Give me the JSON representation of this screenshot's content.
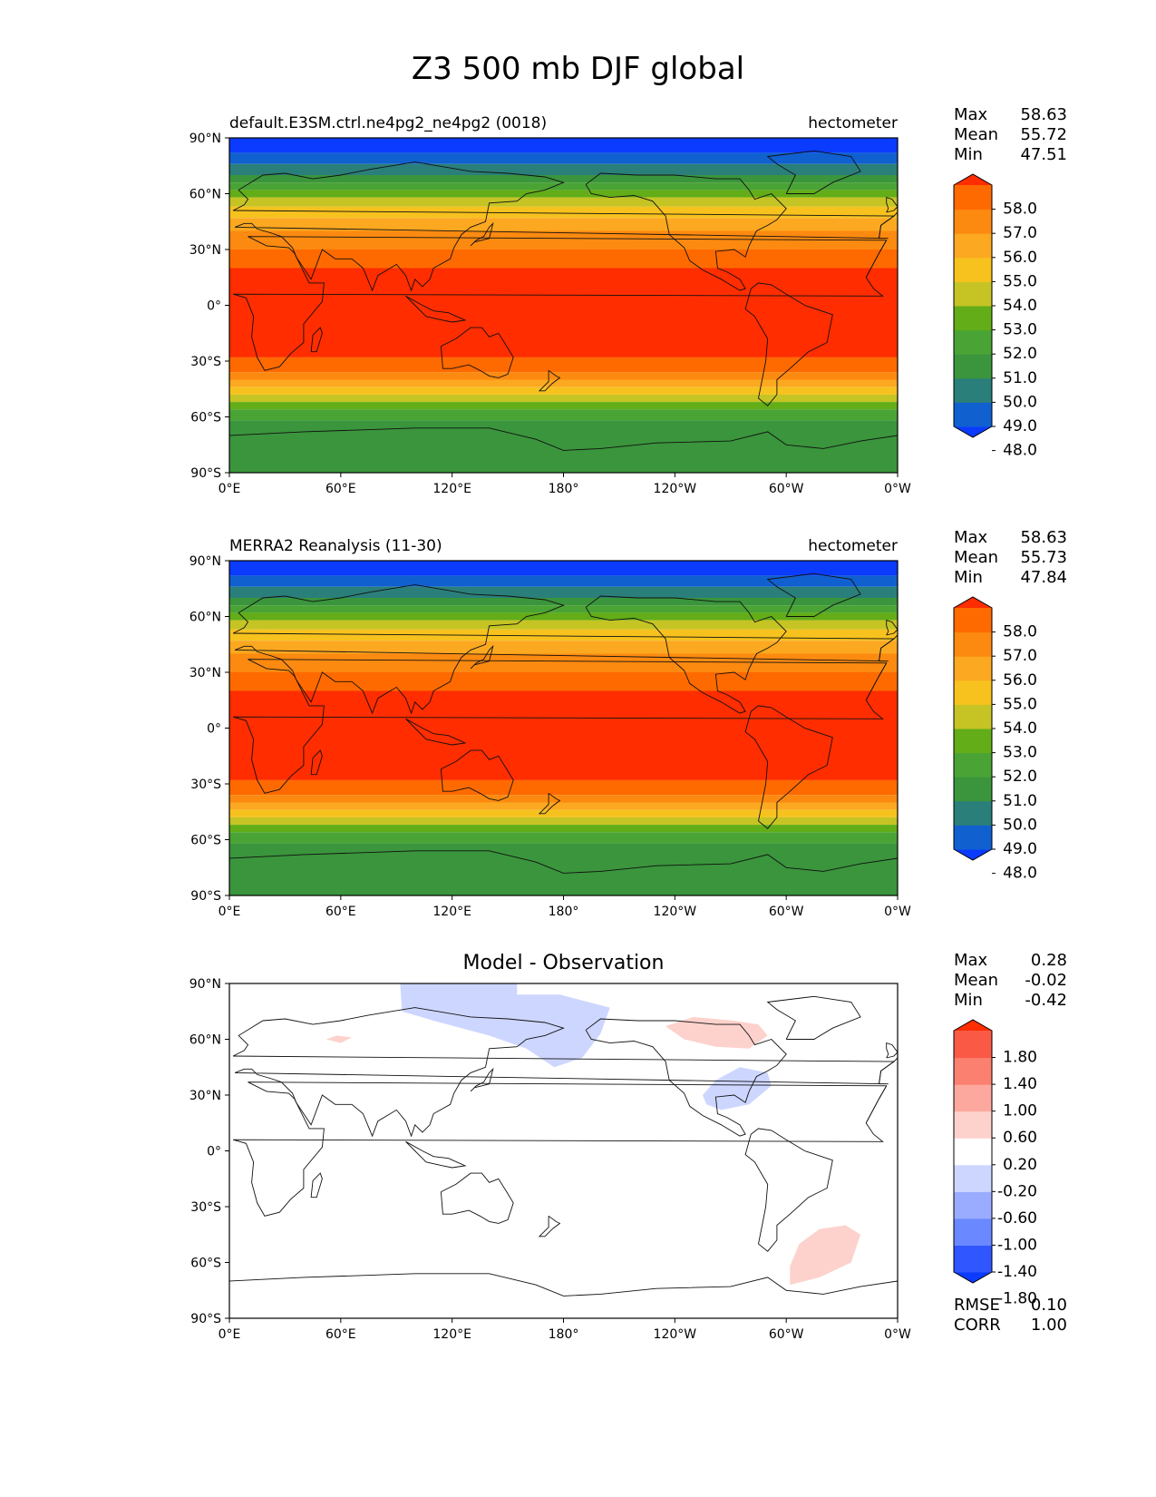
{
  "title": "Z3 500 mb DJF global",
  "lat_ticks": [
    "90°N",
    "60°N",
    "30°N",
    "0°",
    "30°S",
    "60°S",
    "90°S"
  ],
  "lon_ticks": [
    "0°E",
    "60°E",
    "120°E",
    "180°",
    "120°W",
    "60°W",
    "0°W"
  ],
  "panels": [
    {
      "left_title": "default.E3SM.ctrl.ne4pg2_ne4pg2 (0018)",
      "right_title": "hectometer",
      "center_title": "",
      "stats": [
        {
          "label": "Max",
          "value": "58.63"
        },
        {
          "label": "Mean",
          "value": "55.72"
        },
        {
          "label": "Min",
          "value": "47.51"
        }
      ],
      "colorbar": {
        "colors": [
          "#0b3bff",
          "#1060d0",
          "#2a7f7a",
          "#3a953c",
          "#4aa335",
          "#62ad18",
          "#c5c424",
          "#f7c21e",
          "#fca820",
          "#fc8a10",
          "#ff6a00",
          "#ff2d00"
        ],
        "labels": [
          "58.0",
          "57.0",
          "56.0",
          "55.0",
          "54.0",
          "53.0",
          "52.0",
          "51.0",
          "50.0",
          "49.0",
          "48.0"
        ]
      },
      "footer_stats": []
    },
    {
      "left_title": "MERRA2 Reanalysis (11-30)",
      "right_title": "hectometer",
      "center_title": "",
      "stats": [
        {
          "label": "Max",
          "value": "58.63"
        },
        {
          "label": "Mean",
          "value": "55.73"
        },
        {
          "label": "Min",
          "value": "47.84"
        }
      ],
      "colorbar": {
        "colors": [
          "#0b3bff",
          "#1060d0",
          "#2a7f7a",
          "#3a953c",
          "#4aa335",
          "#62ad18",
          "#c5c424",
          "#f7c21e",
          "#fca820",
          "#fc8a10",
          "#ff6a00",
          "#ff2d00"
        ],
        "labels": [
          "58.0",
          "57.0",
          "56.0",
          "55.0",
          "54.0",
          "53.0",
          "52.0",
          "51.0",
          "50.0",
          "49.0",
          "48.0"
        ]
      },
      "footer_stats": []
    },
    {
      "left_title": "",
      "right_title": "",
      "center_title": "Model - Observation",
      "stats": [
        {
          "label": "Max",
          "value": "0.28"
        },
        {
          "label": "Mean",
          "value": "-0.02"
        },
        {
          "label": "Min",
          "value": "-0.42"
        }
      ],
      "colorbar": {
        "colors": [
          "#0b3bff",
          "#3056ff",
          "#6a88ff",
          "#9aacff",
          "#cdd6ff",
          "#ffffff",
          "#fdd2cc",
          "#fca89e",
          "#fc8070",
          "#fa5a45",
          "#ff2d00"
        ],
        "labels": [
          "1.80",
          "1.40",
          "1.00",
          "0.60",
          "0.20",
          "-0.20",
          "-0.60",
          "-1.00",
          "-1.40",
          "-1.80"
        ]
      },
      "footer_stats": [
        {
          "label": "RMSE",
          "value": "0.10"
        },
        {
          "label": "CORR",
          "value": "1.00"
        }
      ]
    }
  ],
  "field_bands": [
    {
      "lat": 90,
      "color": "#0b3bff"
    },
    {
      "lat": 82,
      "color": "#1060d0"
    },
    {
      "lat": 76,
      "color": "#2a7f7a"
    },
    {
      "lat": 70,
      "color": "#3a953c"
    },
    {
      "lat": 66,
      "color": "#4aa335"
    },
    {
      "lat": 62,
      "color": "#62ad18"
    },
    {
      "lat": 58,
      "color": "#c5c424"
    },
    {
      "lat": 53,
      "color": "#f7c21e"
    },
    {
      "lat": 47,
      "color": "#fca820"
    },
    {
      "lat": 40,
      "color": "#fc8a10"
    },
    {
      "lat": 30,
      "color": "#ff6a00"
    },
    {
      "lat": 20,
      "color": "#ff2d00"
    },
    {
      "lat": -28,
      "color": "#ff6a00"
    },
    {
      "lat": -36,
      "color": "#fc8a10"
    },
    {
      "lat": -40,
      "color": "#fca820"
    },
    {
      "lat": -44,
      "color": "#f7c21e"
    },
    {
      "lat": -48,
      "color": "#c5c424"
    },
    {
      "lat": -52,
      "color": "#62ad18"
    },
    {
      "lat": -56,
      "color": "#4aa335"
    },
    {
      "lat": -62,
      "color": "#3a953c"
    }
  ]
}
